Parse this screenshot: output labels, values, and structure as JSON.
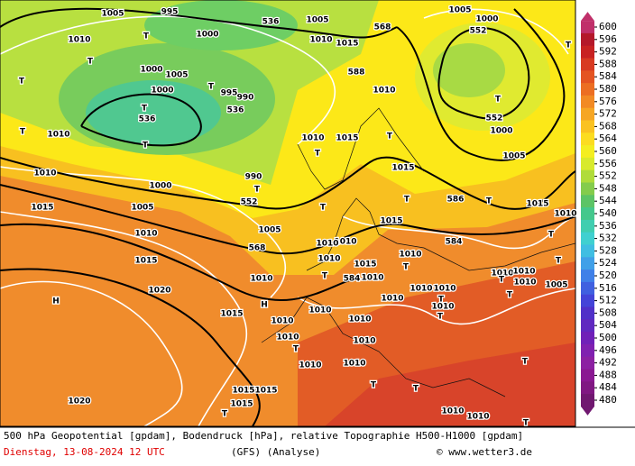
{
  "map": {
    "labels": [
      "1005",
      "995",
      "536",
      "1005",
      "1005",
      "1000",
      "1010",
      "T",
      "1000",
      "1010",
      "1015",
      "568",
      "552",
      "T",
      "T",
      "1000",
      "1005",
      "T",
      "995",
      "990",
      "588",
      "1010",
      "T",
      "1000",
      "T",
      "536",
      "536",
      "T",
      "552",
      "1000",
      "T",
      "1010",
      "T",
      "1010",
      "1015",
      "T",
      "T",
      "1005",
      "1010",
      "1000",
      "990",
      "T",
      "1015",
      "552",
      "586",
      "T",
      "T",
      "T",
      "1015",
      "1005",
      "1015",
      "1010",
      "1015",
      "1010",
      "1005",
      "584",
      "T",
      "568",
      "1010",
      "1010",
      "1010",
      "1010",
      "1015",
      "1015",
      "T",
      "T",
      "1010",
      "1010",
      "1010",
      "584",
      "1010",
      "T",
      "1010",
      "1010",
      "1010",
      "T",
      "T",
      "1005",
      "1020",
      "H",
      "1010",
      "T",
      "1010",
      "H",
      "1010",
      "1015",
      "1010",
      "T",
      "1010",
      "1010",
      "1010",
      "T",
      "T",
      "1010",
      "1010",
      "T",
      "1015",
      "1015",
      "T",
      "1020",
      "1015",
      "1010",
      "1010",
      "T",
      "T"
    ]
  },
  "legend": {
    "levels": [
      600,
      596,
      592,
      588,
      584,
      580,
      576,
      572,
      568,
      564,
      560,
      556,
      552,
      548,
      544,
      540,
      536,
      532,
      528,
      524,
      520,
      516,
      512,
      508,
      504,
      500,
      496,
      492,
      488,
      484,
      480
    ],
    "colors": [
      "#c0306a",
      "#b4182a",
      "#c82222",
      "#d83a22",
      "#e45422",
      "#ec6e22",
      "#f28a24",
      "#f6a624",
      "#fac222",
      "#fcdc20",
      "#f4ee20",
      "#d8ea2c",
      "#b0dc3a",
      "#84cc4c",
      "#5cc466",
      "#44c88c",
      "#40ceb0",
      "#40d0d0",
      "#40bee2",
      "#40a0e8",
      "#4080e8",
      "#4060e0",
      "#4444d8",
      "#5030c8",
      "#6028c0",
      "#7020b8",
      "#8020b0",
      "#8c20a2",
      "#8a1892",
      "#801882",
      "#701870"
    ]
  },
  "footer": {
    "line1": "500 hPa Geopotential [gpdam], Bodendruck [hPa], relative Topographie H500-H1000 [gpdam]",
    "date": "Dienstag, 13-08-2024  12 UTC",
    "model": "(GFS)   (Analyse)",
    "copyright": "© www.wetter3.de"
  }
}
